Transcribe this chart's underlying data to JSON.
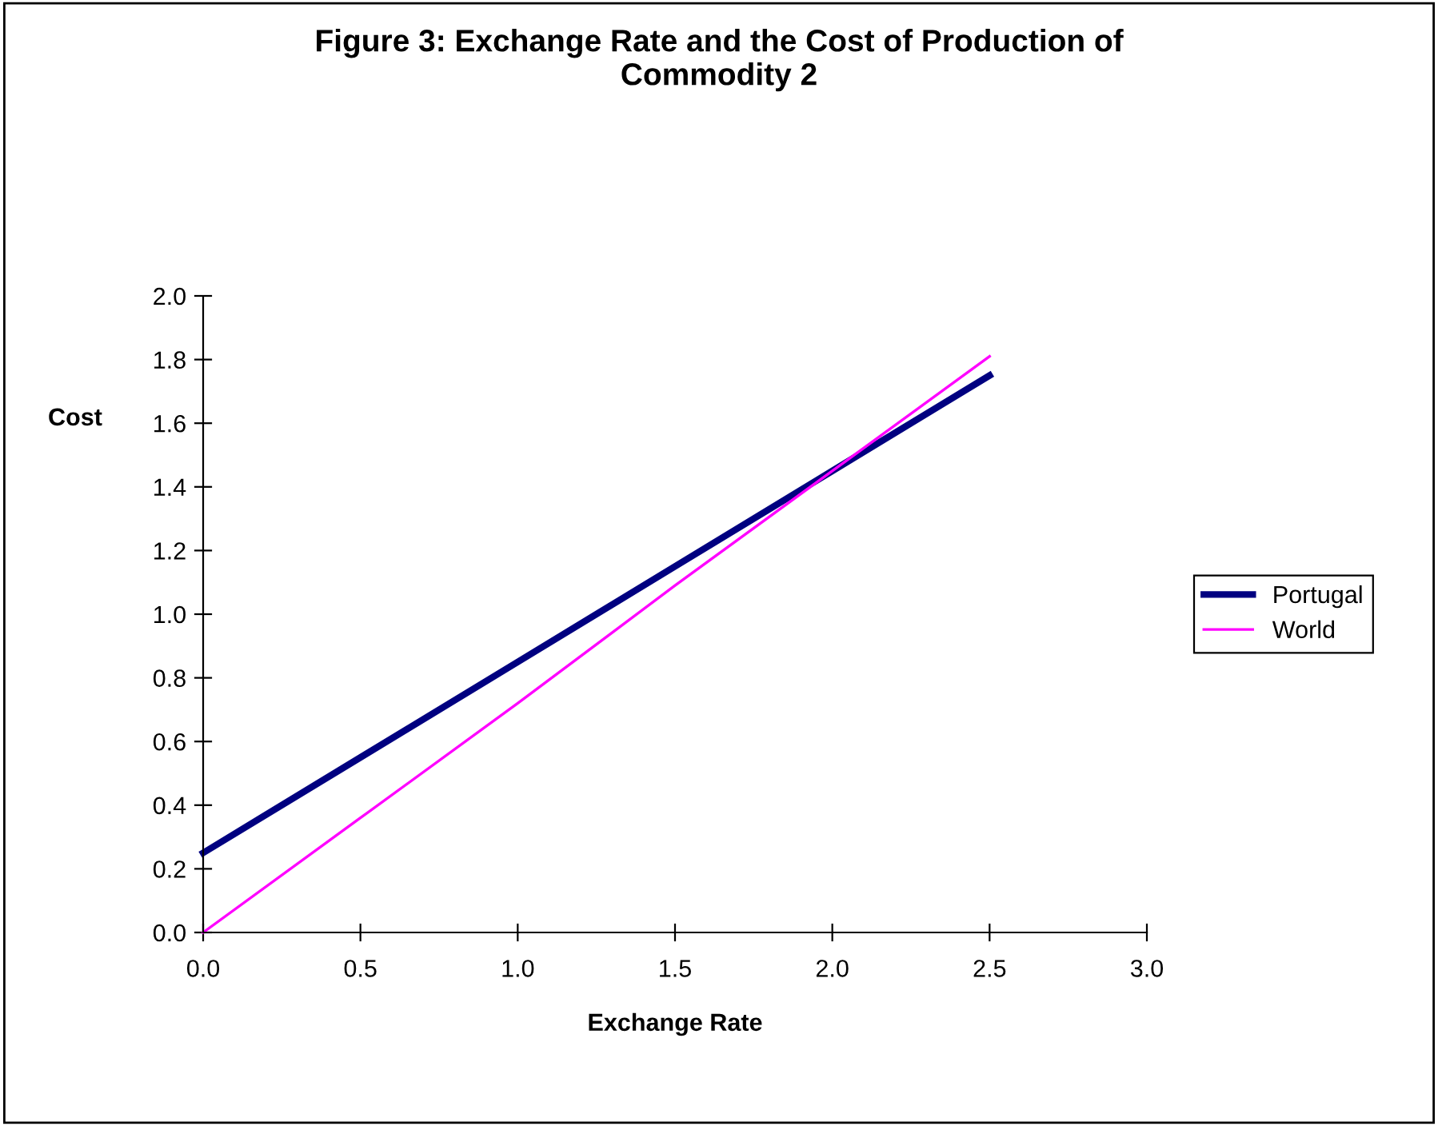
{
  "chart_data": {
    "type": "line",
    "title": "Figure 3: Exchange Rate and the Cost of Production of\nCommodity 2",
    "xlabel": "Exchange Rate",
    "ylabel": "Cost",
    "x": [
      0,
      0.5,
      1.0,
      1.5,
      2.0,
      2.5
    ],
    "series": [
      {
        "name": "Portugal",
        "color": "#000080",
        "values": [
          0.25,
          0.55,
          0.85,
          1.15,
          1.45,
          1.75
        ]
      },
      {
        "name": "World",
        "color": "#ff00ff",
        "values": [
          0,
          0.36,
          0.72,
          1.09,
          1.45,
          1.81
        ]
      }
    ],
    "xlim": [
      0,
      3
    ],
    "xticks": [
      {
        "value": 0,
        "label": "0.0"
      },
      {
        "value": 0.5,
        "label": "0.5"
      },
      {
        "value": 1,
        "label": "1.0"
      },
      {
        "value": 1.5,
        "label": "1.5"
      },
      {
        "value": 2,
        "label": "2.0"
      },
      {
        "value": 2.5,
        "label": "2.5"
      },
      {
        "value": 3,
        "label": "3.0"
      }
    ],
    "ylim": [
      0,
      2
    ],
    "yticks": [
      {
        "value": 0,
        "label": "0.0"
      },
      {
        "value": 0.2,
        "label": "0.2"
      },
      {
        "value": 0.4,
        "label": "0.4"
      },
      {
        "value": 0.6,
        "label": "0.6"
      },
      {
        "value": 0.8,
        "label": "0.8"
      },
      {
        "value": 1,
        "label": "1.0"
      },
      {
        "value": 1.2,
        "label": "1.2"
      },
      {
        "value": 1.4,
        "label": "1.4"
      },
      {
        "value": 1.6,
        "label": "1.6"
      },
      {
        "value": 1.8,
        "label": "1.8"
      },
      {
        "value": 2,
        "label": "2.0"
      }
    ],
    "grid": false,
    "legend": "right",
    "marker": "none",
    "line_style": "solid"
  }
}
